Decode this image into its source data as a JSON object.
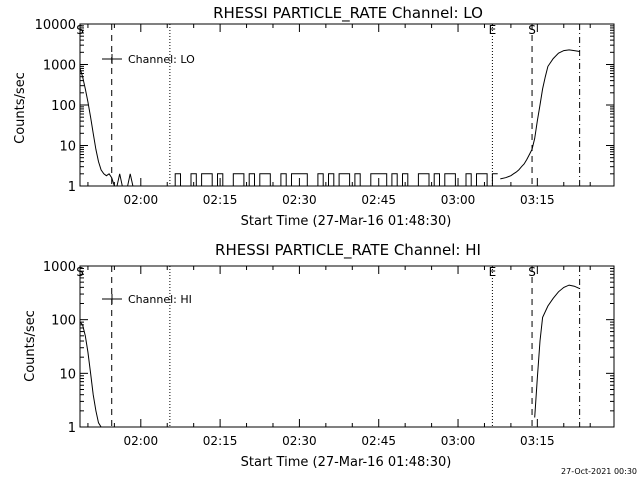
{
  "footer_timestamp": "27-Oct-2021 00:30",
  "chart_data": [
    {
      "type": "line",
      "title": "RHESSI PARTICLE_RATE Channel: LO",
      "xlabel": "Start Time (27-Mar-16 01:48:30)",
      "ylabel": "Counts/sec",
      "y_scale": "log",
      "xlim": [
        "01:48:30",
        "03:29:30"
      ],
      "ylim": [
        1,
        10000
      ],
      "x_ticks": [
        "02:00",
        "02:15",
        "02:30",
        "02:45",
        "03:00",
        "03:15"
      ],
      "y_ticks": [
        "1",
        "10",
        "100",
        "1000",
        "10000"
      ],
      "legend": {
        "label": "Channel: LO",
        "position": "top-left"
      },
      "markers": [
        {
          "label": "S",
          "time": "01:48:30",
          "style": "dashed"
        },
        {
          "label": "",
          "time": "01:54:30",
          "style": "dashed"
        },
        {
          "label": "",
          "time": "02:05:30",
          "style": "dotted"
        },
        {
          "label": "E",
          "time": "03:06:30",
          "style": "dotted"
        },
        {
          "label": "S",
          "time": "03:14:00",
          "style": "dashed"
        },
        {
          "label": "",
          "time": "03:23:00",
          "style": "dashdot"
        }
      ],
      "series": [
        {
          "x": [
            "01:48:30",
            "01:49:00",
            "01:49:30",
            "01:50:00",
            "01:50:30",
            "01:51:00",
            "01:51:30",
            "01:52:00",
            "01:52:30",
            "01:53:00",
            "01:53:30",
            "01:54:00",
            "01:54:30",
            "01:55:00",
            "01:55:30",
            "01:56:00",
            "01:56:30",
            "01:57:00",
            "01:57:30",
            "01:58:00",
            "01:58:30",
            "01:59:00",
            "03:08:00",
            "03:09:00",
            "03:10:00",
            "03:10:30",
            "03:11:00",
            "03:11:30",
            "03:12:00",
            "03:12:30",
            "03:13:00",
            "03:13:30",
            "03:14:00",
            "03:14:30",
            "03:15:00",
            "03:15:30",
            "03:16:00",
            "03:16:30",
            "03:17:00",
            "03:18:00",
            "03:19:00",
            "03:20:00",
            "03:21:00",
            "03:22:00",
            "03:23:00"
          ],
          "y": [
            800,
            500,
            250,
            120,
            50,
            20,
            8,
            4,
            2.5,
            2,
            1.8,
            2,
            1.6,
            1,
            1,
            2,
            1,
            1,
            1,
            2,
            1,
            1,
            1.5,
            1.6,
            1.8,
            2,
            2.2,
            2.5,
            3,
            3.5,
            4.5,
            6,
            8,
            15,
            40,
            100,
            250,
            500,
            900,
            1400,
            1900,
            2200,
            2300,
            2200,
            2100
          ]
        }
      ]
    },
    {
      "type": "line",
      "title": "RHESSI PARTICLE_RATE Channel: HI",
      "xlabel": "Start Time (27-Mar-16 01:48:30)",
      "ylabel": "Counts/sec",
      "y_scale": "log",
      "xlim": [
        "01:48:30",
        "03:29:30"
      ],
      "ylim": [
        1,
        1000
      ],
      "x_ticks": [
        "02:00",
        "02:15",
        "02:30",
        "02:45",
        "03:00",
        "03:15"
      ],
      "y_ticks": [
        "1",
        "10",
        "100",
        "1000"
      ],
      "legend": {
        "label": "Channel: HI",
        "position": "top-left"
      },
      "markers": [
        {
          "label": "S",
          "time": "01:48:30",
          "style": "dashed"
        },
        {
          "label": "",
          "time": "01:54:30",
          "style": "dashed"
        },
        {
          "label": "",
          "time": "02:05:30",
          "style": "dotted"
        },
        {
          "label": "E",
          "time": "03:06:30",
          "style": "dotted"
        },
        {
          "label": "S",
          "time": "03:14:00",
          "style": "dashed"
        },
        {
          "label": "",
          "time": "03:23:00",
          "style": "dashdot"
        }
      ],
      "series": [
        {
          "x": [
            "01:48:30",
            "01:49:00",
            "01:49:30",
            "01:50:00",
            "01:50:30",
            "01:51:00",
            "01:51:30",
            "01:52:00",
            "01:52:30",
            "03:14:30",
            "03:15:00",
            "03:15:30",
            "03:16:00",
            "03:17:00",
            "03:18:00",
            "03:19:00",
            "03:20:00",
            "03:21:00",
            "03:22:00",
            "03:23:00"
          ],
          "y": [
            90,
            80,
            50,
            25,
            10,
            4,
            2,
            1.2,
            1,
            1.5,
            8,
            40,
            110,
            180,
            250,
            330,
            400,
            440,
            420,
            380
          ]
        }
      ]
    }
  ]
}
